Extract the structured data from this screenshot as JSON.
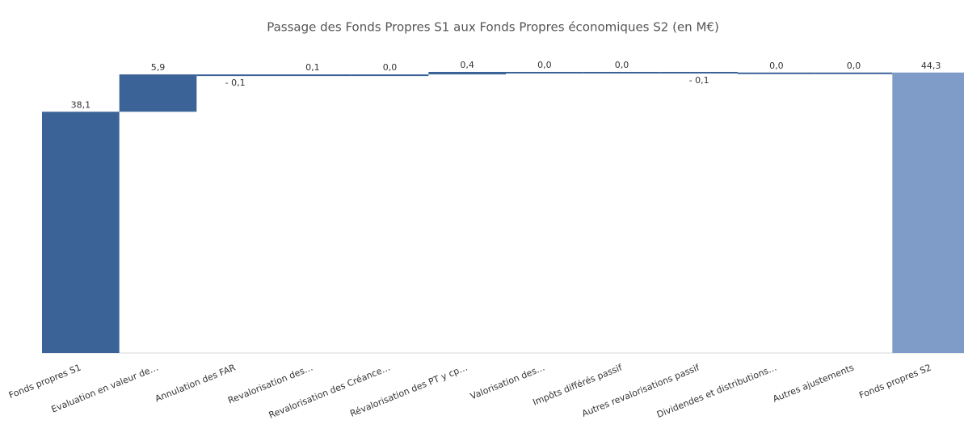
{
  "chart_data": {
    "type": "waterfall",
    "title": "Passage des Fonds Propres S1 aux Fonds Propres économiques S2 (en M€)",
    "categories": [
      "Fonds propres S1",
      "Evaluation en valeur de…",
      "Annulation des FAR",
      "Revalorisation des…",
      "Revalorisation des Créance…",
      "Révalorisation des PT y cp…",
      "Valorisation des…",
      "Impôts différés passif",
      "Autres revalorisations passif",
      "Dividendes et distributions…",
      "Autres ajustements",
      "Fonds propres S2"
    ],
    "values": [
      38.1,
      5.9,
      -0.1,
      0.1,
      0.0,
      0.4,
      0.0,
      0.0,
      -0.1,
      0.0,
      0.0,
      44.3
    ],
    "value_labels": [
      "38,1",
      "5,9",
      "- 0,1",
      "0,1",
      "0,0",
      "0,4",
      "0,0",
      "0,0",
      "- 0,1",
      "0,0",
      "0,0",
      "44,3"
    ],
    "totals": [
      true,
      false,
      false,
      false,
      false,
      false,
      false,
      false,
      false,
      false,
      false,
      true
    ],
    "colors": [
      "#3b6397",
      "#3b6397",
      "#3b6397",
      "#3b6397",
      "#3b6397",
      "#3b6397",
      "#3b6397",
      "#3b6397",
      "#3b6397",
      "#3b6397",
      "#3b6397",
      "#7f9cc8"
    ]
  }
}
